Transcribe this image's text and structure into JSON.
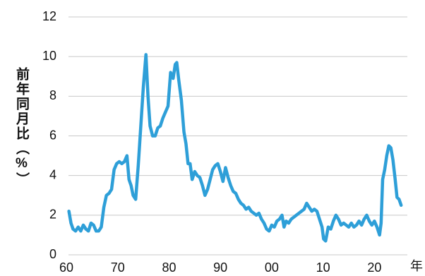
{
  "chart_data": {
    "type": "line",
    "y_label": "前年同月比（%）",
    "x_label": "年",
    "x": [
      1960.5,
      1960.9,
      1961.3,
      1961.8,
      1962.3,
      1962.8,
      1963.3,
      1963.8,
      1964.3,
      1964.8,
      1965.3,
      1965.8,
      1966.3,
      1966.8,
      1967.3,
      1967.8,
      1968.3,
      1968.8,
      1969.3,
      1969.8,
      1970.3,
      1970.8,
      1971.3,
      1971.8,
      1972.2,
      1972.6,
      1973.0,
      1973.5,
      1974.0,
      1974.5,
      1975.0,
      1975.5,
      1975.9,
      1976.3,
      1976.8,
      1977.3,
      1977.8,
      1978.3,
      1978.8,
      1979.3,
      1979.8,
      1980.3,
      1980.8,
      1981.2,
      1981.5,
      1981.9,
      1982.4,
      1982.9,
      1983.3,
      1983.7,
      1984.1,
      1984.5,
      1985.0,
      1985.5,
      1986.0,
      1986.5,
      1987.0,
      1987.5,
      1988.0,
      1988.5,
      1989.0,
      1989.5,
      1990.0,
      1990.5,
      1991.0,
      1991.5,
      1992.0,
      1992.5,
      1993.0,
      1993.5,
      1994.0,
      1994.5,
      1995.0,
      1995.5,
      1996.0,
      1996.5,
      1997.0,
      1997.5,
      1998.0,
      1998.5,
      1999.0,
      1999.5,
      2000.0,
      2000.5,
      2001.0,
      2001.5,
      2002.0,
      2002.4,
      2002.8,
      2003.3,
      2003.8,
      2004.3,
      2004.8,
      2005.3,
      2005.8,
      2006.3,
      2006.8,
      2007.3,
      2007.8,
      2008.3,
      2008.8,
      2009.3,
      2009.8,
      2010.1,
      2010.5,
      2011.0,
      2011.5,
      2012.0,
      2012.5,
      2013.0,
      2013.5,
      2014.0,
      2014.5,
      2015.0,
      2015.5,
      2016.0,
      2016.5,
      2017.0,
      2017.5,
      2018.0,
      2018.5,
      2019.0,
      2019.5,
      2020.0,
      2020.5,
      2021.0,
      2021.3,
      2021.6,
      2022.0,
      2022.4,
      2022.8,
      2023.2,
      2023.6,
      2024.0,
      2024.4,
      2024.8,
      2025.2
    ],
    "series": [
      {
        "color": "#2e9fd8",
        "values": [
          2.2,
          1.6,
          1.3,
          1.2,
          1.4,
          1.2,
          1.5,
          1.3,
          1.2,
          1.6,
          1.5,
          1.2,
          1.2,
          1.4,
          2.4,
          3.0,
          3.1,
          3.3,
          4.3,
          4.6,
          4.7,
          4.6,
          4.7,
          5.0,
          3.8,
          3.5,
          3.0,
          2.8,
          4.5,
          6.5,
          8.5,
          10.1,
          8.0,
          6.5,
          6.0,
          6.0,
          6.4,
          6.5,
          6.9,
          7.2,
          7.5,
          9.2,
          8.9,
          9.6,
          9.7,
          8.8,
          7.8,
          6.2,
          5.6,
          4.6,
          4.6,
          3.8,
          4.2,
          4.0,
          3.9,
          3.5,
          3.0,
          3.3,
          3.8,
          4.3,
          4.5,
          4.6,
          4.2,
          3.7,
          4.4,
          3.9,
          3.5,
          3.2,
          3.1,
          2.8,
          2.6,
          2.5,
          2.3,
          2.4,
          2.2,
          2.1,
          2.0,
          2.1,
          1.8,
          1.6,
          1.3,
          1.2,
          1.5,
          1.4,
          1.7,
          1.8,
          2.0,
          1.4,
          1.7,
          1.6,
          1.8,
          1.9,
          2.0,
          2.1,
          2.2,
          2.3,
          2.6,
          2.4,
          2.2,
          2.3,
          2.2,
          1.8,
          1.4,
          0.8,
          0.7,
          1.4,
          1.3,
          1.7,
          2.0,
          1.8,
          1.5,
          1.6,
          1.5,
          1.4,
          1.6,
          1.4,
          1.5,
          1.7,
          1.5,
          1.8,
          2.0,
          1.7,
          1.5,
          1.7,
          1.4,
          1.0,
          1.6,
          3.8,
          4.3,
          5.0,
          5.5,
          5.4,
          4.8,
          3.9,
          2.9,
          2.8,
          2.5
        ]
      }
    ],
    "xlim": [
      1960,
      2026
    ],
    "xticks": [
      {
        "value": 1960,
        "label": "60"
      },
      {
        "value": 1970,
        "label": "70"
      },
      {
        "value": 1980,
        "label": "80"
      },
      {
        "value": 1990,
        "label": "90"
      },
      {
        "value": 2000,
        "label": "00"
      },
      {
        "value": 2010,
        "label": "10"
      },
      {
        "value": 2020,
        "label": "20"
      }
    ],
    "ylim": [
      0,
      12
    ],
    "yticks": [
      0,
      2,
      4,
      6,
      8,
      10,
      12
    ],
    "grid": true
  }
}
